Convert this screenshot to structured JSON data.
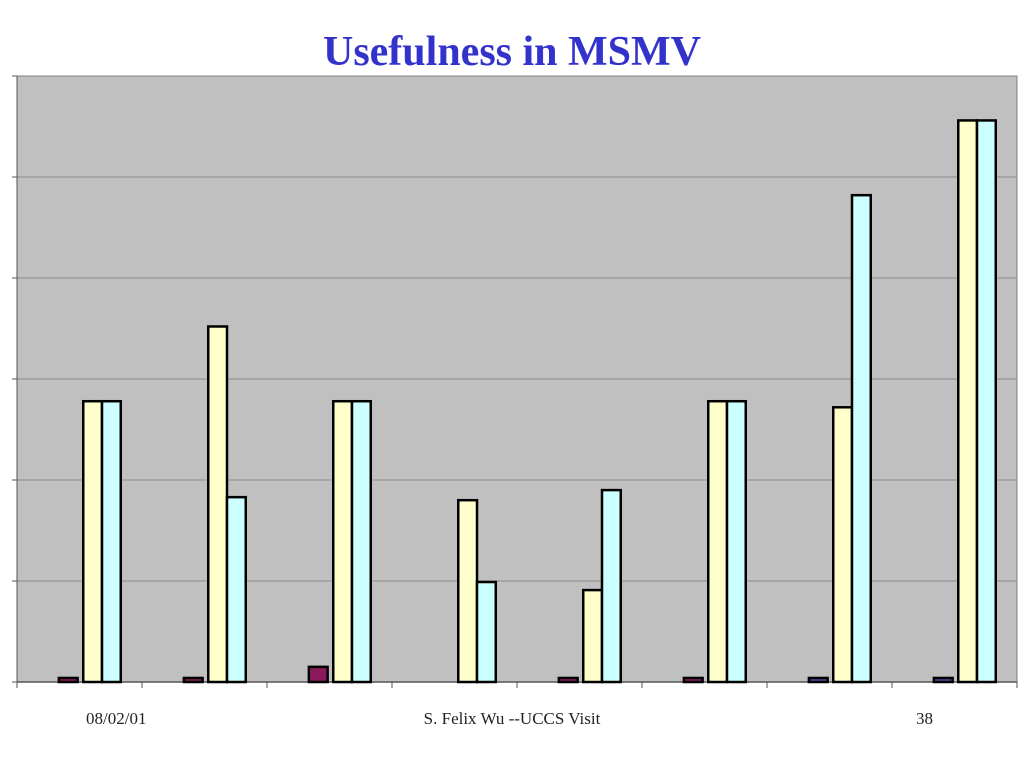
{
  "slide": {
    "title": "Usefulness in MSMV",
    "footer_date": "08/02/01",
    "footer_center": "S. Felix Wu --UCCS Visit",
    "page_number": "38"
  },
  "colors": {
    "title": "#3333cc",
    "plot_background": "#c0c0c0",
    "gridline": "#8c8c8c",
    "series_dark": "#8b1a5c",
    "series_dark_alt": "#4a4a9a",
    "series_yellow": "#ffffcc",
    "series_cyan": "#ccffff",
    "bar_stroke": "#000000"
  },
  "chart_data": {
    "type": "bar",
    "title": "Usefulness in MSMV",
    "xlabel": "",
    "ylabel": "",
    "ylim": [
      0,
      6
    ],
    "grid": true,
    "legend": "none",
    "categories": [
      "",
      "",
      "",
      "",
      "",
      "",
      "",
      ""
    ],
    "series": [
      {
        "values": [
          0.04,
          0.04,
          0.15,
          0,
          0.04,
          0.04,
          0.04,
          0.04
        ]
      },
      {
        "values": [
          2.78,
          3.52,
          2.78,
          1.8,
          0.91,
          2.78,
          2.72,
          5.56
        ]
      },
      {
        "values": [
          2.78,
          1.83,
          2.78,
          0.99,
          1.9,
          2.78,
          4.82,
          5.56
        ]
      }
    ]
  }
}
